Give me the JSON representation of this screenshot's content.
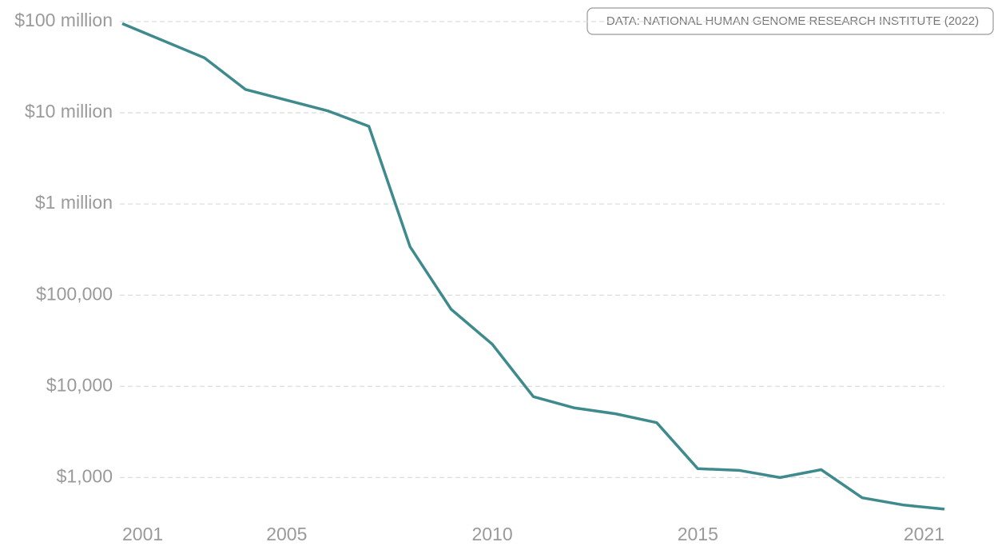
{
  "chart_data": {
    "type": "line",
    "annotation": "DATA:  NATIONAL HUMAN GENOME RESEARCH INSTITUTE (2022)",
    "x": [
      2001,
      2003,
      2004,
      2006,
      2007,
      2008,
      2009,
      2010,
      2011,
      2012,
      2013,
      2014,
      2015,
      2016,
      2017,
      2018,
      2019,
      2020,
      2021
    ],
    "series": [
      {
        "color": "#3f8a8c",
        "values": [
          95000000,
          40000000,
          18000000,
          10500000,
          7100000,
          340000,
          70000,
          29000,
          7700,
          5800,
          5000,
          4000,
          1250,
          1200,
          1000,
          1220,
          600,
          500,
          450
        ]
      }
    ],
    "xlim": [
      2001,
      2021
    ],
    "xticks": [
      2001,
      2005,
      2010,
      2015,
      2021
    ],
    "ylim": [
      300,
      100000000
    ],
    "log_y": true,
    "grid": true,
    "yticks": [
      {
        "value": 1000,
        "label": "$1,000"
      },
      {
        "value": 10000,
        "label": "$10,000"
      },
      {
        "value": 100000,
        "label": "$100,000"
      },
      {
        "value": 1000000,
        "label": "$1 million"
      },
      {
        "value": 10000000,
        "label": "$10 million"
      },
      {
        "value": 100000000,
        "label": "$100 million"
      }
    ]
  }
}
